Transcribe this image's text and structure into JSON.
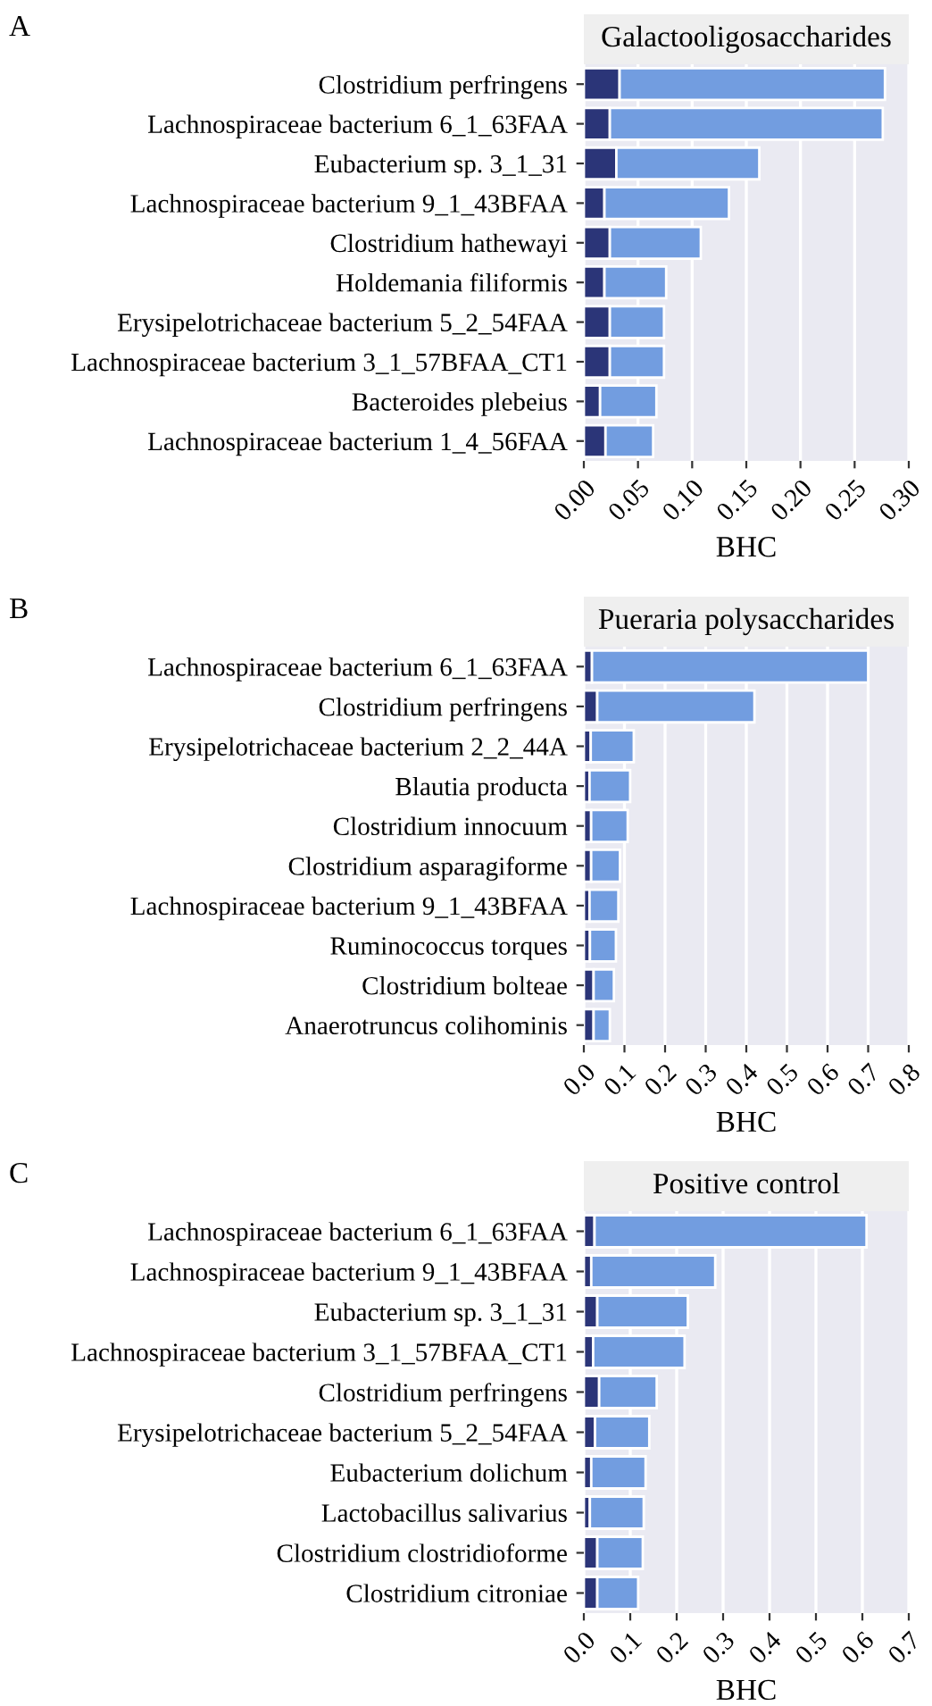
{
  "chart_data": [
    {
      "type": "bar",
      "orientation": "horizontal",
      "stacked": true,
      "title": "Galactooligosaccharides",
      "xlabel": "BHC",
      "annotations": [
        "A"
      ],
      "grid": "x",
      "categories": [
        "Clostridium perfringens",
        "Lachnospiraceae bacterium 6_1_63FAA",
        "Eubacterium sp. 3_1_31",
        "Lachnospiraceae bacterium 9_1_43BFAA",
        "Clostridium hathewayi",
        "Holdemania filiformis",
        "Erysipelotrichaceae bacterium 5_2_54FAA",
        "Lachnospiraceae bacterium 3_1_57BFAA_CT1",
        "Bacteroides plebeius",
        "Lachnospiraceae bacterium 1_4_56FAA"
      ],
      "series": [
        {
          "color": "#2b3578",
          "values": [
            0.033,
            0.024,
            0.03,
            0.019,
            0.024,
            0.019,
            0.024,
            0.024,
            0.015,
            0.02
          ]
        },
        {
          "color": "#729de0",
          "values": [
            0.245,
            0.252,
            0.132,
            0.115,
            0.084,
            0.057,
            0.05,
            0.05,
            0.052,
            0.044
          ]
        }
      ],
      "xlim": [
        0,
        0.3
      ],
      "xticks": [
        {
          "value": 0,
          "label": "0.00"
        },
        0.05,
        {
          "value": 0.1,
          "label": "0.10"
        },
        0.15,
        {
          "value": 0.2,
          "label": "0.20"
        },
        0.25,
        {
          "value": 0.3,
          "label": "0.30"
        }
      ]
    },
    {
      "type": "bar",
      "orientation": "horizontal",
      "stacked": true,
      "title": "Pueraria polysaccharides",
      "xlabel": "BHC",
      "annotations": [
        "B"
      ],
      "grid": "x",
      "categories": [
        "Lachnospiraceae bacterium 6_1_63FAA",
        "Clostridium perfringens",
        "Erysipelotrichaceae bacterium 2_2_44A",
        "Blautia producta",
        "Clostridium innocuum",
        "Clostridium asparagiforme",
        "Lachnospiraceae bacterium 9_1_43BFAA",
        "Ruminococcus torques",
        "Clostridium bolteae",
        "Anaerotruncus colihominis"
      ],
      "series": [
        {
          "color": "#2b3578",
          "values": [
            0.02,
            0.033,
            0.017,
            0.014,
            0.018,
            0.018,
            0.014,
            0.015,
            0.024,
            0.024
          ]
        },
        {
          "color": "#729de0",
          "values": [
            0.68,
            0.387,
            0.106,
            0.1,
            0.09,
            0.071,
            0.071,
            0.064,
            0.05,
            0.04
          ]
        }
      ],
      "xlim": [
        0,
        0.8
      ],
      "xticks": [
        {
          "value": 0,
          "label": "0.0"
        },
        0.1,
        0.2,
        0.3,
        0.4,
        0.5,
        0.6,
        0.7,
        0.8
      ]
    },
    {
      "type": "bar",
      "orientation": "horizontal",
      "stacked": true,
      "title": "Positive control",
      "xlabel": "BHC",
      "annotations": [
        "C"
      ],
      "grid": "x",
      "categories": [
        "Lachnospiraceae bacterium 6_1_63FAA",
        "Lachnospiraceae bacterium 9_1_43BFAA",
        "Eubacterium sp. 3_1_31",
        "Lachnospiraceae bacterium 3_1_57BFAA_CT1",
        "Clostridium perfringens",
        "Erysipelotrichaceae bacterium 5_2_54FAA",
        "Eubacterium dolichum",
        "Lactobacillus salivarius",
        "Clostridium clostridioforme",
        "Clostridium citroniae"
      ],
      "series": [
        {
          "color": "#2b3578",
          "values": [
            0.023,
            0.016,
            0.029,
            0.02,
            0.033,
            0.024,
            0.016,
            0.013,
            0.029,
            0.029
          ]
        },
        {
          "color": "#729de0",
          "values": [
            0.586,
            0.267,
            0.195,
            0.197,
            0.124,
            0.117,
            0.117,
            0.116,
            0.098,
            0.088
          ]
        }
      ],
      "xlim": [
        0,
        0.7
      ],
      "xticks": [
        {
          "value": 0,
          "label": "0.0"
        },
        0.1,
        0.2,
        0.3,
        0.4,
        0.5,
        0.6,
        0.7
      ]
    }
  ]
}
